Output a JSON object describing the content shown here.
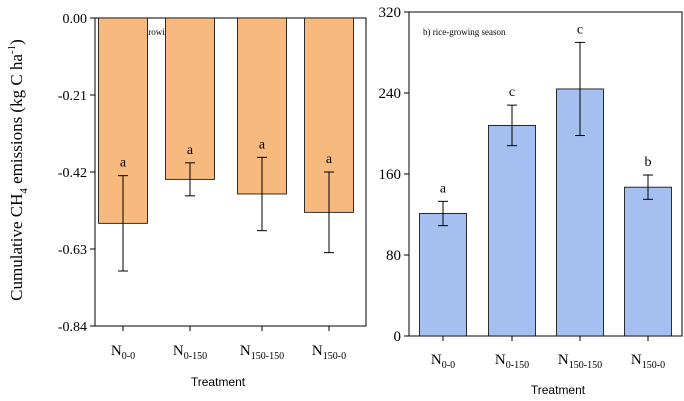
{
  "ylabel": {
    "prefix": "Cumulative CH",
    "sub": "4",
    "mid": " emissions (kg C ha",
    "sup": "-1",
    "suffix": ")"
  },
  "chart_data": [
    {
      "type": "bar",
      "title": "a) rapeseed-growing season",
      "xlabel": "Treatment",
      "categories": [
        {
          "main": "N",
          "sub": "0-0"
        },
        {
          "main": "N",
          "sub": "0-150"
        },
        {
          "main": "N",
          "sub": "150-150"
        },
        {
          "main": "N",
          "sub": "150-0"
        }
      ],
      "values": [
        -0.56,
        -0.44,
        -0.48,
        -0.53
      ],
      "errors": [
        0.13,
        0.045,
        0.1,
        0.11
      ],
      "sig_letters": [
        "a",
        "a",
        "a",
        "a"
      ],
      "ylim": [
        -0.84,
        0.0
      ],
      "yticks": [
        0.0,
        -0.21,
        -0.42,
        -0.63,
        -0.84
      ],
      "ytick_labels": [
        "0.00",
        "-0.21",
        "-0.42",
        "-0.63",
        "-0.84"
      ],
      "bar_color": "#f8b97f",
      "grid": false
    },
    {
      "type": "bar",
      "title": "b) rice-growing season",
      "xlabel": "Treatment",
      "categories": [
        {
          "main": "N",
          "sub": "0-0"
        },
        {
          "main": "N",
          "sub": "0-150"
        },
        {
          "main": "N",
          "sub": "150-150"
        },
        {
          "main": "N",
          "sub": "150-0"
        }
      ],
      "values": [
        121,
        208,
        244,
        147
      ],
      "errors": [
        12,
        20,
        46,
        12
      ],
      "sig_letters": [
        "a",
        "c",
        "c",
        "b"
      ],
      "ylim": [
        0,
        320
      ],
      "yticks": [
        0,
        80,
        160,
        240,
        320
      ],
      "ytick_labels": [
        "0",
        "80",
        "160",
        "240",
        "320"
      ],
      "bar_color": "#a4bff0",
      "grid": false
    }
  ]
}
